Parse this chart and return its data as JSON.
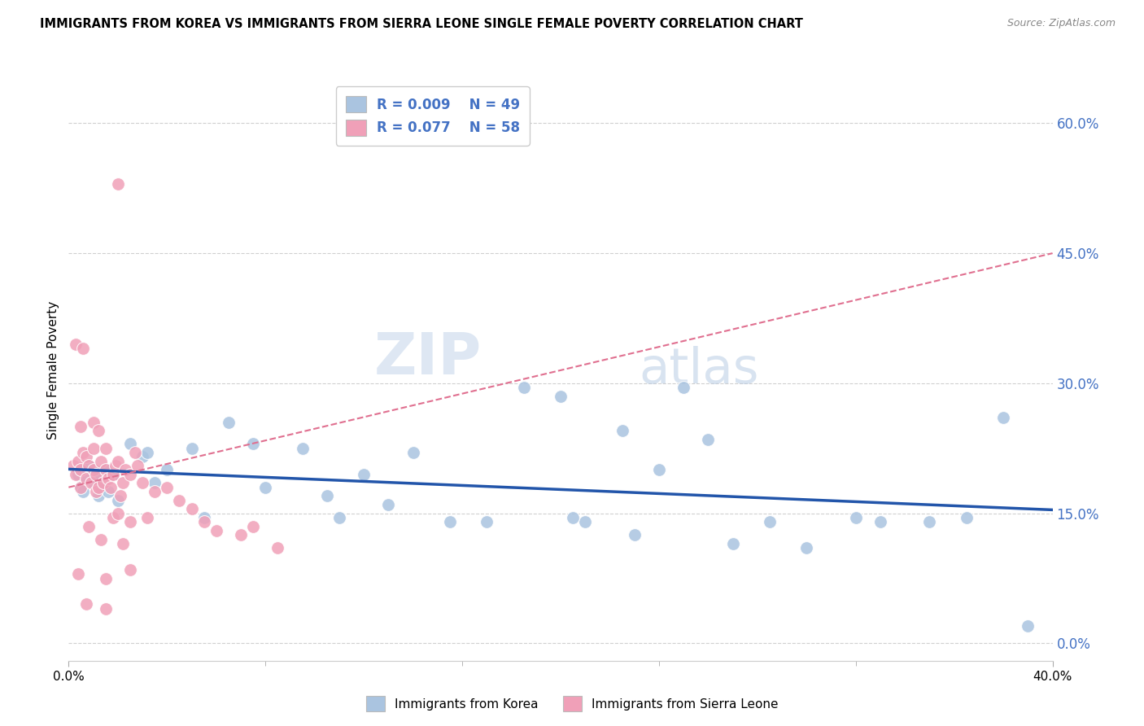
{
  "title": "IMMIGRANTS FROM KOREA VS IMMIGRANTS FROM SIERRA LEONE SINGLE FEMALE POVERTY CORRELATION CHART",
  "source": "Source: ZipAtlas.com",
  "ylabel": "Single Female Poverty",
  "yticks": [
    "0.0%",
    "15.0%",
    "30.0%",
    "45.0%",
    "60.0%"
  ],
  "ytick_vals": [
    0.0,
    15.0,
    30.0,
    45.0,
    60.0
  ],
  "xlim": [
    0.0,
    40.0
  ],
  "ylim": [
    -2.0,
    65.0
  ],
  "legend_korea": "Immigrants from Korea",
  "legend_sierra": "Immigrants from Sierra Leone",
  "R_korea": "0.009",
  "N_korea": "49",
  "R_sierra": "0.077",
  "N_sierra": "58",
  "watermark_zip": "ZIP",
  "watermark_atlas": "atlas",
  "color_korea": "#aac4e0",
  "color_sierra": "#f0a0b8",
  "color_trendline_korea": "#2255aa",
  "color_trendline_sierra": "#e07090",
  "korea_x": [
    0.4,
    0.5,
    0.6,
    0.7,
    0.8,
    1.0,
    1.1,
    1.2,
    1.3,
    1.5,
    1.6,
    1.8,
    2.0,
    2.5,
    3.0,
    3.2,
    3.5,
    4.0,
    5.0,
    5.5,
    6.5,
    7.5,
    8.0,
    9.5,
    10.5,
    11.0,
    12.0,
    13.0,
    14.0,
    15.5,
    17.0,
    18.5,
    20.0,
    21.0,
    22.5,
    24.0,
    25.0,
    27.0,
    28.5,
    30.0,
    32.0,
    33.0,
    35.0,
    36.5,
    38.0,
    20.5,
    23.0,
    26.0,
    39.0
  ],
  "korea_y": [
    19.5,
    18.0,
    17.5,
    19.0,
    20.5,
    18.5,
    19.0,
    17.0,
    18.0,
    20.0,
    17.5,
    19.5,
    16.5,
    23.0,
    21.5,
    22.0,
    18.5,
    20.0,
    22.5,
    14.5,
    25.5,
    23.0,
    18.0,
    22.5,
    17.0,
    14.5,
    19.5,
    16.0,
    22.0,
    14.0,
    14.0,
    29.5,
    28.5,
    14.0,
    24.5,
    20.0,
    29.5,
    11.5,
    14.0,
    11.0,
    14.5,
    14.0,
    14.0,
    14.5,
    26.0,
    14.5,
    12.5,
    23.5,
    2.0
  ],
  "sierra_x": [
    0.2,
    0.3,
    0.4,
    0.5,
    0.5,
    0.6,
    0.7,
    0.7,
    0.8,
    0.9,
    1.0,
    1.0,
    1.1,
    1.1,
    1.2,
    1.3,
    1.4,
    1.5,
    1.5,
    1.6,
    1.7,
    1.8,
    1.9,
    2.0,
    2.1,
    2.2,
    2.3,
    2.5,
    2.7,
    2.8,
    3.0,
    3.5,
    4.0,
    4.5,
    5.5,
    6.0,
    7.0,
    7.5,
    8.5,
    0.5,
    1.0,
    1.2,
    1.8,
    2.0,
    2.5,
    3.2,
    5.0,
    0.3,
    0.6,
    0.8,
    1.3,
    2.2,
    0.4,
    2.5,
    1.5,
    0.7,
    1.5,
    2.0
  ],
  "sierra_y": [
    20.5,
    19.5,
    21.0,
    20.0,
    18.0,
    22.0,
    21.5,
    19.0,
    20.5,
    18.5,
    20.0,
    22.5,
    19.5,
    17.5,
    18.0,
    21.0,
    18.5,
    20.0,
    22.5,
    19.0,
    18.0,
    19.5,
    20.5,
    21.0,
    17.0,
    18.5,
    20.0,
    19.5,
    22.0,
    20.5,
    18.5,
    17.5,
    18.0,
    16.5,
    14.0,
    13.0,
    12.5,
    13.5,
    11.0,
    25.0,
    25.5,
    24.5,
    14.5,
    15.0,
    14.0,
    14.5,
    15.5,
    34.5,
    34.0,
    13.5,
    12.0,
    11.5,
    8.0,
    8.5,
    7.5,
    4.5,
    4.0,
    53.0
  ]
}
